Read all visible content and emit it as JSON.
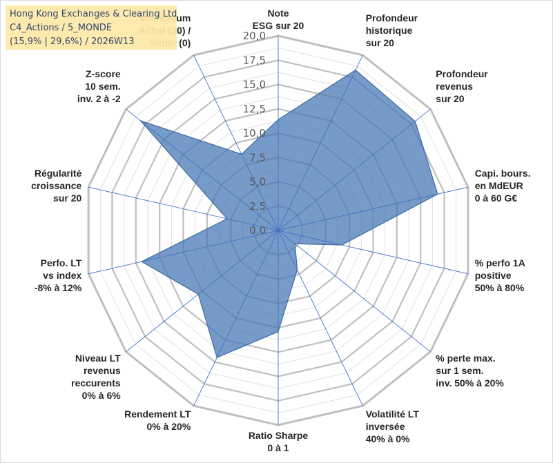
{
  "info_box": {
    "company": "Hong Kong Exchanges & Clearing Ltd",
    "category": "C4_Actions / 5_MONDE",
    "stats": "(15,9% | 29,6%) / 2026W13"
  },
  "colors": {
    "fill": "#4a7ab5",
    "fill_opacity": "0.75",
    "series_line": "#3d6aa3",
    "ring": "#bfbfbf",
    "ring_minor": "#e0e0e0",
    "spoke": "#4472c4",
    "tick_text": "#595959",
    "label_text": "#262626",
    "overlap_text": "#c9a96a"
  },
  "chart_data": {
    "type": "radar",
    "title": "",
    "rmin": 0,
    "rmax": 20,
    "major_step": 2.5,
    "minor_step": 1.25,
    "ticks": [
      "0,0",
      "2,5",
      "5,0",
      "7,5",
      "10,0",
      "12,5",
      "15,0",
      "17,5",
      "20,0"
    ],
    "axes": [
      {
        "label": [
          "Note",
          "ESG sur 20"
        ],
        "value": 11.4
      },
      {
        "label": [
          "Profondeur",
          "historique",
          "sur 20"
        ],
        "value": 18.3
      },
      {
        "label": [
          "Profondeur",
          "revenus",
          "sur 20"
        ],
        "value": 18.0
      },
      {
        "label": [
          "Capi. bours.",
          "en MdEUR",
          "0 à 60 G€"
        ],
        "value": 16.8
      },
      {
        "label": [
          "% perfo 1A",
          "positive",
          "50% à 80%"
        ],
        "value": 6.7
      },
      {
        "label": [
          "% perte max.",
          "sur 1 sem.",
          "inv. 50% à 20%"
        ],
        "value": 2.2
      },
      {
        "label": [
          "Volatilité LT",
          "inversée",
          "40% à 0%"
        ],
        "value": 4.5
      },
      {
        "label": [
          "Ratio Sharpe",
          "0 à 1"
        ],
        "value": 10.4
      },
      {
        "label": [
          "Rendement LT",
          "0% à 20%"
        ],
        "value": 14.5
      },
      {
        "label": [
          "Niveau LT",
          "revenus",
          "reccurents",
          "0% à 6%"
        ],
        "value": 10.5
      },
      {
        "label": [
          "Perfo. LT",
          "vs index",
          "-8% à 12%"
        ],
        "value": 14.4
      },
      {
        "label": [
          "Régularité",
          "croissance",
          "sur 20"
        ],
        "value": 5.4
      },
      {
        "label": [
          "Z-score",
          "10 sem.",
          "inv. 2 à -2"
        ],
        "value": 18.1
      },
      {
        "label": [
          "Momentum",
          "Achat (20) /",
          "Vente (0)"
        ],
        "value": 8.7
      }
    ]
  }
}
